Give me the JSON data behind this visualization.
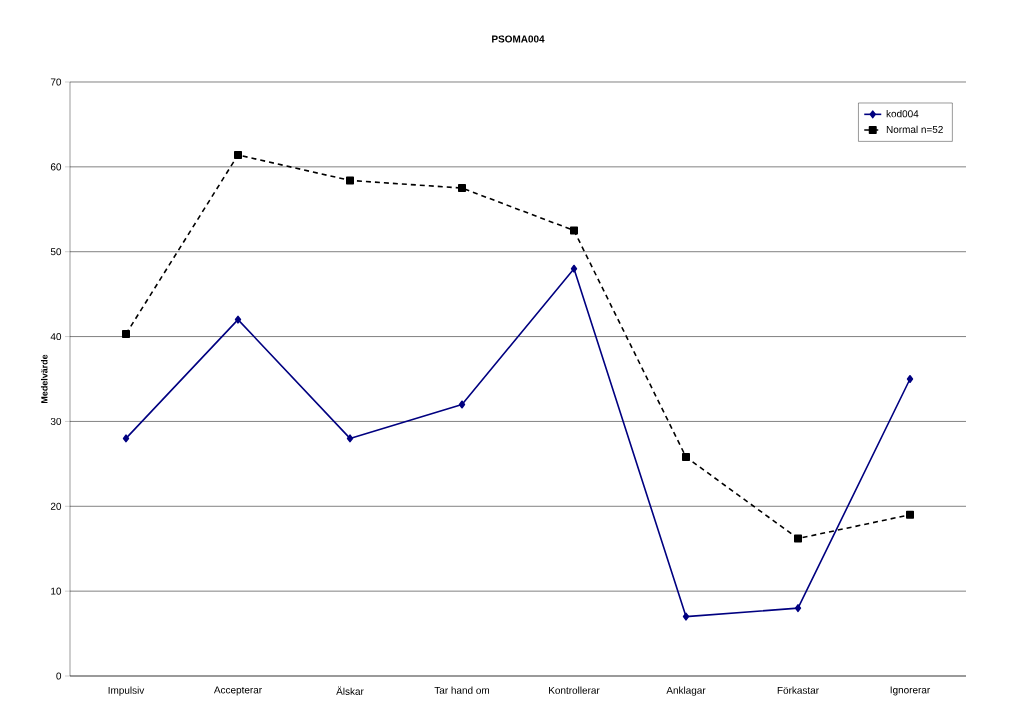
{
  "chart_data": {
    "type": "line",
    "title": "PSOMA004",
    "ylabel": "Medelvärde",
    "categories": [
      "Impulsiv",
      "Accepterar",
      "Älskar",
      "Tar hand om",
      "Kontrollerar",
      "Anklagar",
      "Förkastar",
      "Ignorerar"
    ],
    "series": [
      {
        "name": "kod004",
        "color": "#000080",
        "marker": "diamond",
        "line_style": "solid",
        "values": [
          28,
          42,
          28,
          32,
          48,
          7,
          8,
          35
        ]
      },
      {
        "name": "Normal n=52",
        "color": "#000000",
        "marker": "square",
        "line_style": "dashed",
        "values": [
          40.3,
          61.4,
          58.4,
          57.5,
          52.5,
          25.8,
          16.2,
          19
        ]
      }
    ],
    "ylim": [
      0,
      70
    ],
    "yticks": [
      0,
      10,
      20,
      30,
      40,
      50,
      60,
      70
    ],
    "grid": "y",
    "legend": "top right"
  }
}
